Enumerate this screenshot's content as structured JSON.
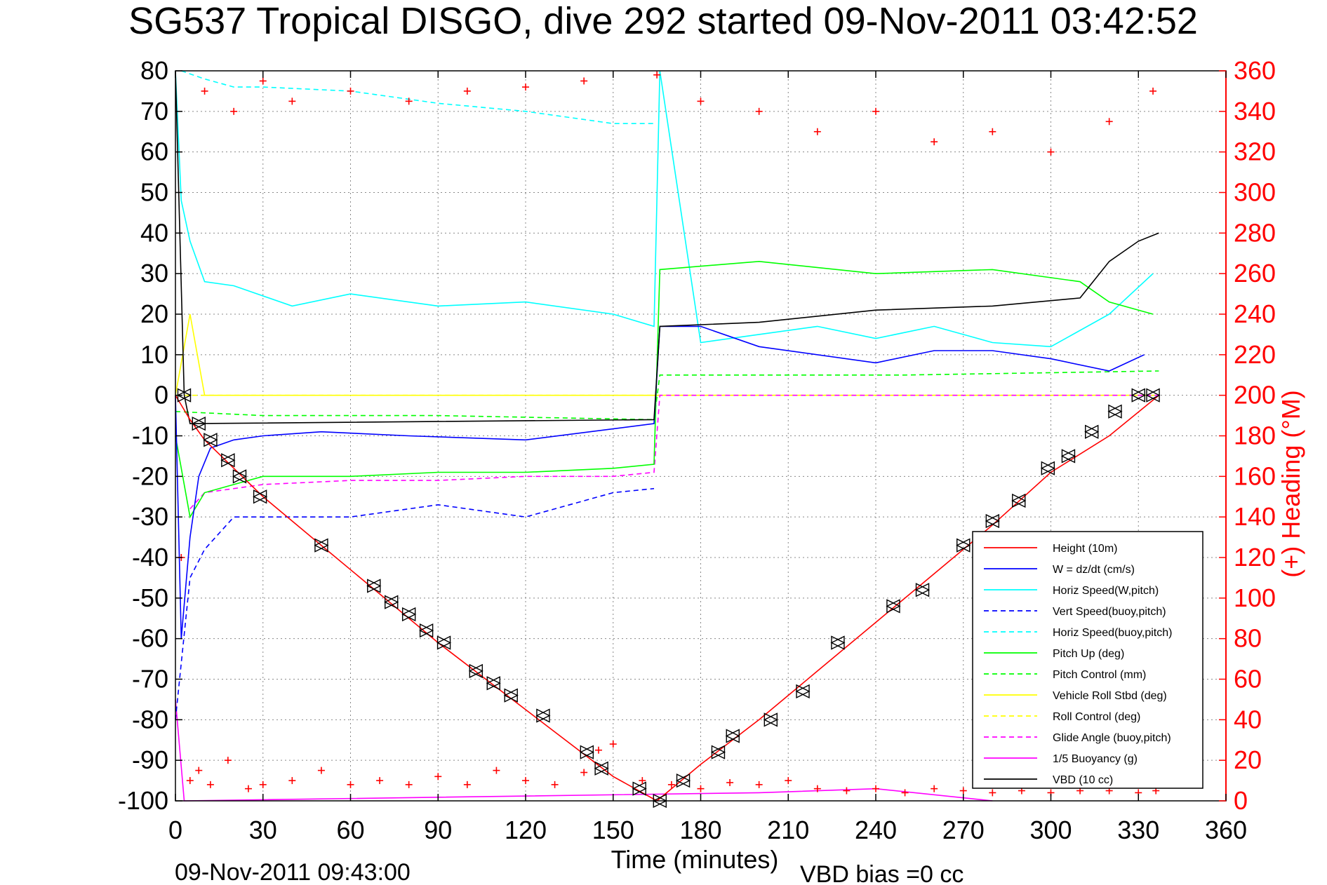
{
  "chart_data": {
    "type": "line",
    "title": "SG537 Tropical DISGO, dive 292 started 09-Nov-2011 03:42:52",
    "xlabel": "Time (minutes)",
    "ylabel_right": "(+) Heading (°M)",
    "xlim": [
      0,
      360
    ],
    "ylim": [
      -100,
      80
    ],
    "ylim_right": [
      0,
      360
    ],
    "xticks": [
      0,
      30,
      60,
      90,
      120,
      150,
      180,
      210,
      240,
      270,
      300,
      330,
      360
    ],
    "yticks": [
      -100,
      -90,
      -80,
      -70,
      -60,
      -50,
      -40,
      -30,
      -20,
      -10,
      0,
      10,
      20,
      30,
      40,
      50,
      60,
      70,
      80
    ],
    "yticks_right": [
      0,
      20,
      40,
      60,
      80,
      100,
      120,
      140,
      160,
      180,
      200,
      220,
      240,
      260,
      280,
      300,
      320,
      340,
      360
    ],
    "grid": true,
    "legend_position": "bottom-right",
    "footer_left": "09-Nov-2011 09:43:00",
    "footer_right": "VBD bias =0 cc",
    "colors": {
      "height": "#ff0000",
      "w": "#0000ff",
      "horiz_w": "#00ffff",
      "pitch": "#00ff00",
      "roll": "#ffff00",
      "glide": "#ff00ff",
      "vbd": "#000000",
      "heading": "#ff0000"
    },
    "series": [
      {
        "name": "Height (10m)",
        "color": "#ff0000",
        "style": "solid",
        "x": [
          0,
          5,
          10,
          20,
          30,
          50,
          70,
          90,
          110,
          130,
          150,
          165,
          180,
          200,
          220,
          240,
          260,
          280,
          300,
          320,
          337
        ],
        "y": [
          0,
          -6,
          -11,
          -18,
          -25,
          -37,
          -49,
          -61,
          -72,
          -83,
          -94,
          -100,
          -91,
          -80,
          -68,
          -56,
          -44,
          -32,
          -19,
          -10,
          0
        ]
      },
      {
        "name": "W = dz/dt (cm/s)",
        "color": "#0000ff",
        "style": "solid",
        "x": [
          0,
          2,
          5,
          8,
          12,
          20,
          30,
          50,
          80,
          120,
          164,
          166,
          180,
          200,
          240,
          260,
          280,
          300,
          320,
          332
        ],
        "y": [
          0,
          -60,
          -35,
          -20,
          -13,
          -11,
          -10,
          -9,
          -10,
          -11,
          -7,
          17,
          17,
          12,
          8,
          11,
          11,
          9,
          6,
          10
        ]
      },
      {
        "name": "Horiz Speed(W,pitch)",
        "color": "#00ffff",
        "style": "solid",
        "x": [
          0,
          2,
          5,
          10,
          20,
          40,
          60,
          90,
          120,
          150,
          164,
          166,
          180,
          200,
          220,
          240,
          260,
          280,
          300,
          320,
          335
        ],
        "y": [
          80,
          48,
          38,
          28,
          27,
          22,
          25,
          22,
          23,
          20,
          17,
          80,
          13,
          15,
          17,
          14,
          17,
          13,
          12,
          20,
          30
        ]
      },
      {
        "name": "Vert Speed(buoy,pitch)",
        "color": "#0000ff",
        "style": "dashed",
        "x": [
          0,
          5,
          10,
          20,
          30,
          60,
          90,
          120,
          150,
          164
        ],
        "y": [
          -80,
          -45,
          -38,
          -30,
          -30,
          -30,
          -27,
          -30,
          -24,
          -23
        ]
      },
      {
        "name": "Horiz Speed(buoy,pitch)",
        "color": "#00ffff",
        "style": "dashed",
        "x": [
          2,
          10,
          20,
          30,
          60,
          90,
          120,
          150,
          164
        ],
        "y": [
          80,
          78,
          76,
          76,
          75,
          72,
          70,
          67,
          67
        ]
      },
      {
        "name": "Pitch Up (deg)",
        "color": "#00ff00",
        "style": "solid",
        "x": [
          0,
          5,
          10,
          20,
          30,
          60,
          90,
          120,
          150,
          164,
          166,
          200,
          240,
          280,
          310,
          320,
          335
        ],
        "y": [
          -10,
          -30,
          -24,
          -22,
          -20,
          -20,
          -19,
          -19,
          -18,
          -17,
          31,
          33,
          30,
          31,
          28,
          23,
          20
        ]
      },
      {
        "name": "Pitch Control (mm)",
        "color": "#00ff00",
        "style": "dashed",
        "x": [
          0,
          30,
          90,
          164,
          166,
          250,
          337
        ],
        "y": [
          -4,
          -5,
          -5,
          -6,
          5,
          5,
          6
        ]
      },
      {
        "name": "Vehicle Roll Stbd (deg)",
        "color": "#ffff00",
        "style": "solid",
        "x": [
          0,
          5,
          10,
          20,
          30,
          60,
          90,
          120,
          150,
          164,
          166,
          200,
          250,
          300,
          320,
          335
        ],
        "y": [
          0,
          20,
          0,
          0,
          0,
          0,
          0,
          0,
          0,
          0,
          0,
          0,
          0,
          0,
          0,
          0
        ]
      },
      {
        "name": "Roll Control (deg)",
        "color": "#ffff00",
        "style": "dashed",
        "x": [
          0,
          164,
          166,
          337
        ],
        "y": [
          0,
          0,
          0,
          0
        ]
      },
      {
        "name": "Glide Angle (buoy,pitch)",
        "color": "#ff00ff",
        "style": "dashed",
        "x": [
          5,
          10,
          20,
          30,
          60,
          90,
          120,
          150,
          164,
          166,
          337
        ],
        "y": [
          -28,
          -24,
          -23,
          -22,
          -21,
          -21,
          -20,
          -20,
          -19,
          0,
          0
        ]
      },
      {
        "name": "1/5 Buoyancy (g)",
        "color": "#ff00ff",
        "style": "solid",
        "x": [
          0,
          3,
          200,
          240,
          280
        ],
        "y": [
          -75,
          -100,
          -98,
          -97,
          -100
        ]
      },
      {
        "name": "VBD (10 cc)",
        "color": "#000000",
        "style": "solid",
        "x": [
          0,
          3,
          5,
          164,
          166,
          200,
          240,
          280,
          310,
          320,
          330,
          337
        ],
        "y": [
          80,
          0,
          -7,
          -6,
          17,
          18,
          21,
          22,
          24,
          33,
          38,
          40
        ]
      }
    ],
    "markers": {
      "name": "Height samples",
      "x": [
        3,
        8,
        12,
        18,
        22,
        29,
        50,
        68,
        74,
        80,
        86,
        92,
        103,
        109,
        115,
        126,
        141,
        146,
        159,
        166,
        174,
        186,
        191,
        204,
        215,
        227,
        246,
        256,
        270,
        280,
        289,
        299,
        306,
        314,
        322,
        330,
        335
      ],
      "y": [
        0,
        -7,
        -11,
        -16,
        -20,
        -25,
        -37,
        -47,
        -51,
        -54,
        -58,
        -61,
        -68,
        -71,
        -74,
        -79,
        -88,
        -92,
        -97,
        -100,
        -95,
        -88,
        -84,
        -80,
        -73,
        -61,
        -52,
        -48,
        -37,
        -31,
        -26,
        -18,
        -15,
        -9,
        -4,
        0,
        0
      ]
    },
    "heading_points": {
      "name": "(+) Heading (°M)",
      "x": [
        2,
        5,
        8,
        12,
        18,
        25,
        30,
        40,
        50,
        60,
        70,
        80,
        90,
        100,
        110,
        120,
        130,
        140,
        145,
        150,
        160,
        170,
        180,
        190,
        200,
        210,
        220,
        230,
        240,
        250,
        260,
        270,
        280,
        290,
        300,
        310,
        320,
        330,
        336
      ],
      "y": [
        120,
        10,
        15,
        8,
        20,
        6,
        8,
        10,
        15,
        8,
        10,
        8,
        12,
        8,
        15,
        10,
        8,
        14,
        25,
        28,
        10,
        8,
        6,
        9,
        8,
        10,
        6,
        5,
        6,
        4,
        6,
        5,
        4,
        5,
        4,
        5,
        5,
        4,
        5
      ]
    },
    "heading_points_top": {
      "x": [
        10,
        20,
        30,
        40,
        60,
        80,
        100,
        120,
        140,
        165,
        180,
        200,
        220,
        240,
        260,
        280,
        300,
        320,
        335
      ],
      "y": [
        350,
        340,
        355,
        345,
        350,
        345,
        350,
        352,
        355,
        358,
        345,
        340,
        330,
        340,
        325,
        330,
        320,
        335,
        350
      ]
    }
  }
}
